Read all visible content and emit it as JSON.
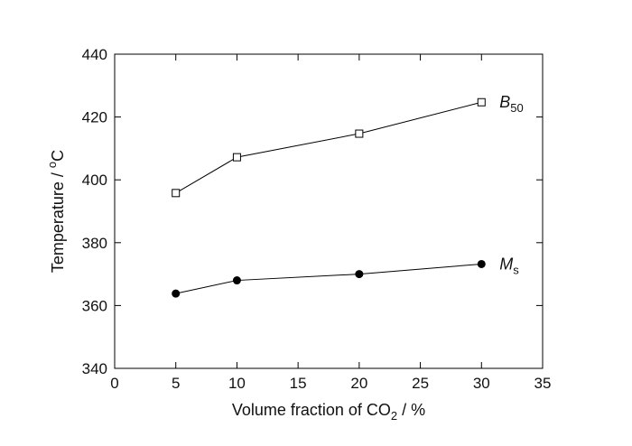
{
  "chart_data": {
    "type": "line",
    "x": [
      5,
      10,
      20,
      30
    ],
    "series": [
      {
        "name": "B50",
        "name_main": "B",
        "name_sub": "50",
        "marker": "open-square",
        "values": [
          395.8,
          407.2,
          414.7,
          424.7
        ]
      },
      {
        "name": "Ms",
        "name_main": "M",
        "name_sub": "s",
        "marker": "filled-circle",
        "values": [
          363.8,
          368.0,
          370.0,
          373.2
        ]
      }
    ],
    "xlim": [
      0,
      35
    ],
    "ylim": [
      340,
      440
    ],
    "xticks": [
      "0",
      "5",
      "10",
      "15",
      "20",
      "25",
      "30",
      "35"
    ],
    "yticks": [
      "340",
      "360",
      "380",
      "400",
      "420",
      "440"
    ],
    "xlabel": {
      "text": "Volume fraction of CO",
      "sub": "2",
      "suffix": " / %"
    },
    "ylabel": {
      "text": "Temperature / ",
      "sup": "o",
      "suffix": "C"
    },
    "grid": false,
    "line_color": "#000000"
  }
}
